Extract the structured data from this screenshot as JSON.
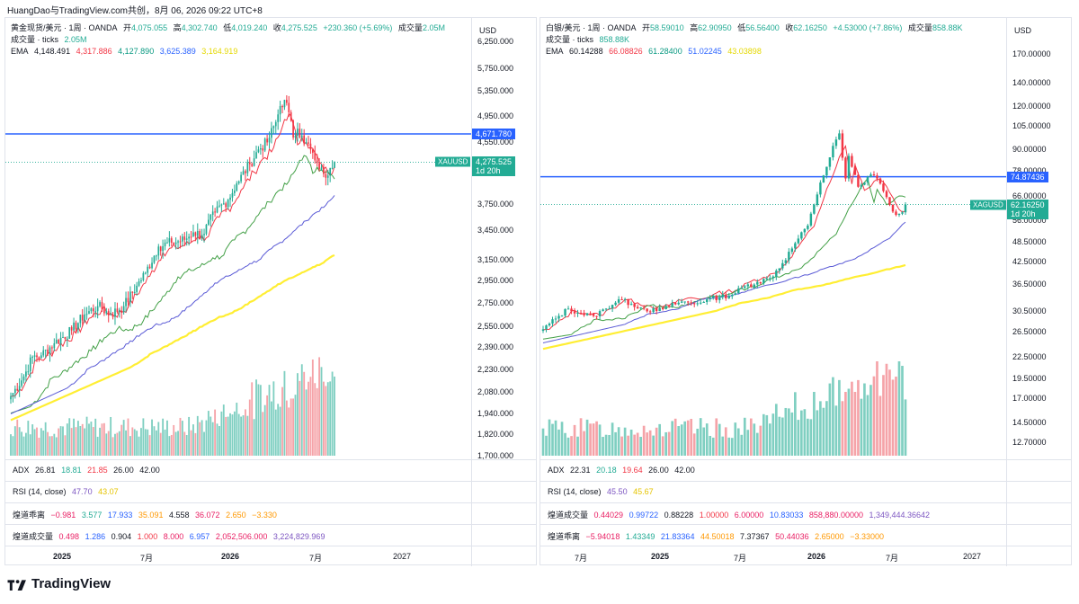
{
  "header": {
    "text": "HuangDao与TradingView.com共创，8月 06, 2026 09:22 UTC+8"
  },
  "brand": {
    "name": "TradingView",
    "logo_icon": "tradingview-logo-icon"
  },
  "panels": [
    {
      "legend": {
        "title": "黄金现货/美元 · 1周 · OANDA",
        "o_label": "开",
        "o": "4,075.055",
        "h_label": "高",
        "h": "4,302.740",
        "l_label": "低",
        "l": "4,019.240",
        "c_label": "收",
        "c": "4,275.525",
        "change": "+230.360 (+5.69%)",
        "vol_label": "成交量",
        "vol": "2.05M",
        "vol_row_label": "成交量 · ticks",
        "vol_row_value": "2.05M",
        "ema_label": "EMA",
        "ema": [
          "4,148.491",
          "4,317.886",
          "4,127.890",
          "3,625.389",
          "3,164.919"
        ]
      },
      "axis": {
        "unit": "USD",
        "ticks": [
          "6,250.000",
          "5,750.000",
          "5,350.000",
          "4,950.000",
          "4,550.000",
          "3,750.000",
          "3,450.000",
          "3,150.000",
          "2,950.000",
          "2,750.000",
          "2,550.000",
          "2,390.000",
          "2,230.000",
          "2,080.000",
          "1,940.000",
          "1,820.000",
          "1,700.000"
        ],
        "hline_label": "4,671.780",
        "price_label": "4,275.525",
        "countdown": "1d 20h",
        "symbol": "XAUUSD"
      },
      "indicators": [
        {
          "label": "ADX",
          "values": [
            "26.81",
            "18.81",
            "21.85",
            "26.00",
            "42.00"
          ]
        },
        {
          "label": "RSI (14, close)",
          "values": [
            "47.70",
            "43.07"
          ]
        },
        {
          "label": "煌道乖离",
          "values": [
            "−0.981",
            "3.577",
            "17.933",
            "35.091",
            "4.558",
            "36.072",
            "2.650",
            "−3.330"
          ]
        },
        {
          "label": "煌道成交量",
          "values": [
            "0.498",
            "1.286",
            "0.904",
            "1.000",
            "8.000",
            "6.957",
            "2,052,506.000",
            "3,224,829.969"
          ]
        }
      ],
      "time_axis": [
        "2025",
        "7月",
        "2026",
        "7月",
        "2027"
      ],
      "chart_data": {
        "type": "candlestick",
        "timeframe": "1W",
        "x_range": [
          "2024-01",
          "2026-08"
        ],
        "y_scale": "log",
        "ylim": [
          1700,
          6250
        ],
        "hline": 4671.78,
        "anchors": [
          {
            "t": 0,
            "p": 2050
          },
          {
            "t": 6,
            "p": 2180
          },
          {
            "t": 10,
            "p": 2320
          },
          {
            "t": 14,
            "p": 2330
          },
          {
            "t": 20,
            "p": 2420
          },
          {
            "t": 28,
            "p": 2520
          },
          {
            "t": 34,
            "p": 2650
          },
          {
            "t": 40,
            "p": 2720
          },
          {
            "t": 46,
            "p": 2650
          },
          {
            "t": 52,
            "p": 2720
          },
          {
            "t": 58,
            "p": 2900
          },
          {
            "t": 62,
            "p": 3020
          },
          {
            "t": 68,
            "p": 3280
          },
          {
            "t": 74,
            "p": 3320
          },
          {
            "t": 80,
            "p": 3350
          },
          {
            "t": 84,
            "p": 3430
          },
          {
            "t": 88,
            "p": 3400
          },
          {
            "t": 94,
            "p": 3650
          },
          {
            "t": 100,
            "p": 3800
          },
          {
            "t": 104,
            "p": 4000
          },
          {
            "t": 110,
            "p": 4250
          },
          {
            "t": 114,
            "p": 4450
          },
          {
            "t": 118,
            "p": 4550
          },
          {
            "t": 122,
            "p": 4850
          },
          {
            "t": 124,
            "p": 5100
          },
          {
            "t": 126,
            "p": 5200
          },
          {
            "t": 128,
            "p": 5000
          },
          {
            "t": 130,
            "p": 4620
          },
          {
            "t": 132,
            "p": 4750
          },
          {
            "t": 134,
            "p": 4650
          },
          {
            "t": 136,
            "p": 4550
          },
          {
            "t": 138,
            "p": 4450
          },
          {
            "t": 140,
            "p": 4300
          },
          {
            "t": 142,
            "p": 4180
          },
          {
            "t": 144,
            "p": 4120
          },
          {
            "t": 146,
            "p": 4100
          },
          {
            "t": 148,
            "p": 4200
          },
          {
            "t": 149,
            "p": 4275.525
          }
        ],
        "ema_end": [
          4148.491,
          4317.886,
          4127.89,
          3625.389,
          3164.919
        ],
        "ema_start": [
          2050,
          2040,
          1990,
          1950,
          1900
        ]
      }
    },
    {
      "legend": {
        "title": "白银/美元 · 1周 · OANDA",
        "o_label": "开",
        "o": "58.59010",
        "h_label": "高",
        "h": "62.90950",
        "l_label": "低",
        "l": "56.56400",
        "c_label": "收",
        "c": "62.16250",
        "change": "+4.53000 (+7.86%)",
        "vol_label": "成交量",
        "vol": "858.88K",
        "vol_row_label": "成交量 · ticks",
        "vol_row_value": "858.88K",
        "ema_label": "EMA",
        "ema": [
          "60.14288",
          "66.08826",
          "61.28400",
          "51.02245",
          "43.03898"
        ]
      },
      "axis": {
        "unit": "USD",
        "ticks": [
          "170.00000",
          "140.00000",
          "120.00000",
          "105.00000",
          "90.00000",
          "78.00000",
          "66.00000",
          "56.00000",
          "48.50000",
          "42.50000",
          "36.50000",
          "30.50000",
          "26.50000",
          "22.50000",
          "19.50000",
          "17.00000",
          "14.50000",
          "12.70000"
        ],
        "hline_label": "74.87436",
        "price_label": "62.16250",
        "countdown": "1d 20h",
        "symbol": "XAGUSD"
      },
      "indicators": [
        {
          "label": "ADX",
          "values": [
            "22.31",
            "20.18",
            "19.64",
            "26.00",
            "42.00"
          ]
        },
        {
          "label": "RSI (14, close)",
          "values": [
            "45.50",
            "45.67"
          ]
        },
        {
          "label": "煌道成交量",
          "values": [
            "0.44029",
            "0.99722",
            "0.88228",
            "1.00000",
            "6.00000",
            "10.83033",
            "858,880.00000",
            "1,349,444.36642"
          ]
        },
        {
          "label": "煌道乖离",
          "values": [
            "−5.94018",
            "1.43349",
            "21.83364",
            "44.50018",
            "7.37367",
            "50.44036",
            "2.65000",
            "−3.33000"
          ]
        }
      ],
      "time_axis": [
        "7月",
        "2025",
        "7月",
        "2026",
        "7月",
        "2027"
      ],
      "chart_data": {
        "type": "candlestick",
        "timeframe": "1W",
        "x_range": [
          "2024-04",
          "2026-08"
        ],
        "y_scale": "log",
        "ylim": [
          11.6,
          185
        ],
        "hline": 74.87436,
        "anchors": [
          {
            "t": 0,
            "p": 27
          },
          {
            "t": 4,
            "p": 29
          },
          {
            "t": 8,
            "p": 31
          },
          {
            "t": 12,
            "p": 30
          },
          {
            "t": 16,
            "p": 29.5
          },
          {
            "t": 20,
            "p": 31
          },
          {
            "t": 24,
            "p": 33
          },
          {
            "t": 28,
            "p": 32
          },
          {
            "t": 32,
            "p": 31
          },
          {
            "t": 36,
            "p": 30.5
          },
          {
            "t": 40,
            "p": 31.5
          },
          {
            "t": 44,
            "p": 32.5
          },
          {
            "t": 48,
            "p": 32
          },
          {
            "t": 52,
            "p": 33
          },
          {
            "t": 56,
            "p": 33.5
          },
          {
            "t": 60,
            "p": 34
          },
          {
            "t": 64,
            "p": 36
          },
          {
            "t": 68,
            "p": 37
          },
          {
            "t": 72,
            "p": 38
          },
          {
            "t": 76,
            "p": 42
          },
          {
            "t": 80,
            "p": 48
          },
          {
            "t": 84,
            "p": 54
          },
          {
            "t": 86,
            "p": 62
          },
          {
            "t": 88,
            "p": 72
          },
          {
            "t": 90,
            "p": 80
          },
          {
            "t": 92,
            "p": 92
          },
          {
            "t": 94,
            "p": 100
          },
          {
            "t": 95,
            "p": 85
          },
          {
            "t": 96,
            "p": 74
          },
          {
            "t": 97,
            "p": 86
          },
          {
            "t": 98,
            "p": 80
          },
          {
            "t": 100,
            "p": 70
          },
          {
            "t": 102,
            "p": 72
          },
          {
            "t": 104,
            "p": 76
          },
          {
            "t": 106,
            "p": 74
          },
          {
            "t": 108,
            "p": 68
          },
          {
            "t": 110,
            "p": 62
          },
          {
            "t": 112,
            "p": 58
          },
          {
            "t": 114,
            "p": 59
          },
          {
            "t": 115,
            "p": 62.1625
          }
        ],
        "ema_end": [
          60.14288,
          66.08826,
          61.284,
          51.02245,
          43.03898
        ],
        "ema_start": [
          27,
          26.5,
          25.5,
          24.5,
          23.5
        ]
      }
    }
  ],
  "colors": {
    "up": "#22ab94",
    "down": "#f23645",
    "hline": "#2962ff",
    "ema1": "#f23645",
    "ema2": "#43a047",
    "ema3": "#5b5bd6",
    "ema4": "#ffee33",
    "vol_up": "#7fcfc1",
    "vol_down": "#f5a3a8"
  }
}
